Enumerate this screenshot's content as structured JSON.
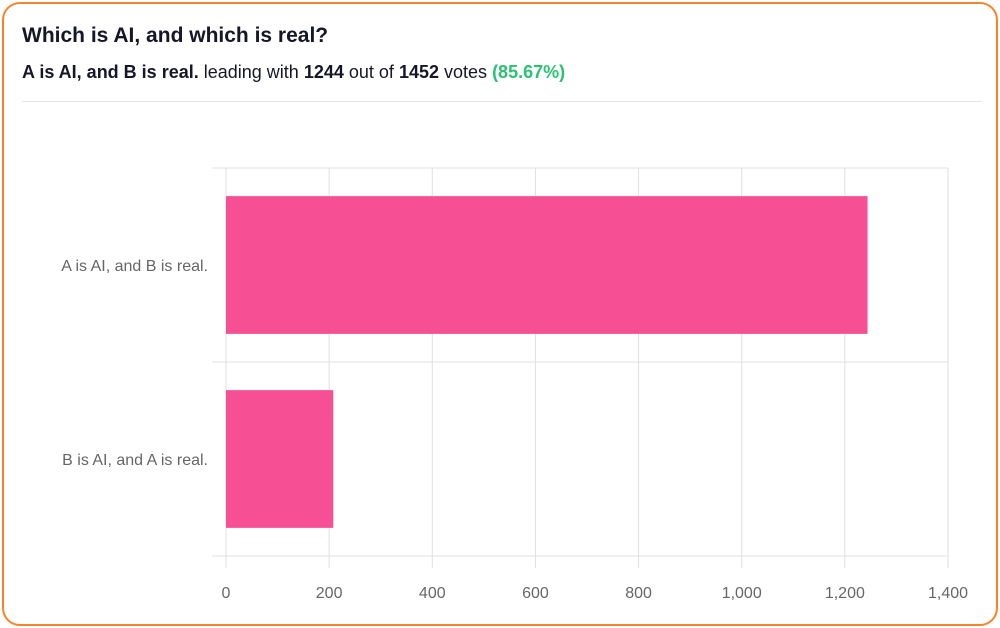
{
  "header": {
    "title": "Which is AI, and which is real?",
    "leader": "A is AI, and B is real.",
    "leading_with": "leading with",
    "leader_votes": 1244,
    "out_of": "out of",
    "total_votes": 1452,
    "votes": "votes",
    "percent": "(85.67%)"
  },
  "chart_data": {
    "type": "bar",
    "orientation": "horizontal",
    "categories": [
      "A is AI, and B is real.",
      "B is AI, and A is real."
    ],
    "values": [
      1244,
      208
    ],
    "color": "#f74f94",
    "xlim": [
      0,
      1400
    ],
    "xticks": [
      0,
      200,
      400,
      600,
      800,
      {
        "value": 1000,
        "label": "1,000"
      },
      {
        "value": 1200,
        "label": "1,200"
      },
      {
        "value": 1400,
        "label": "1,400"
      }
    ],
    "grid": true
  }
}
